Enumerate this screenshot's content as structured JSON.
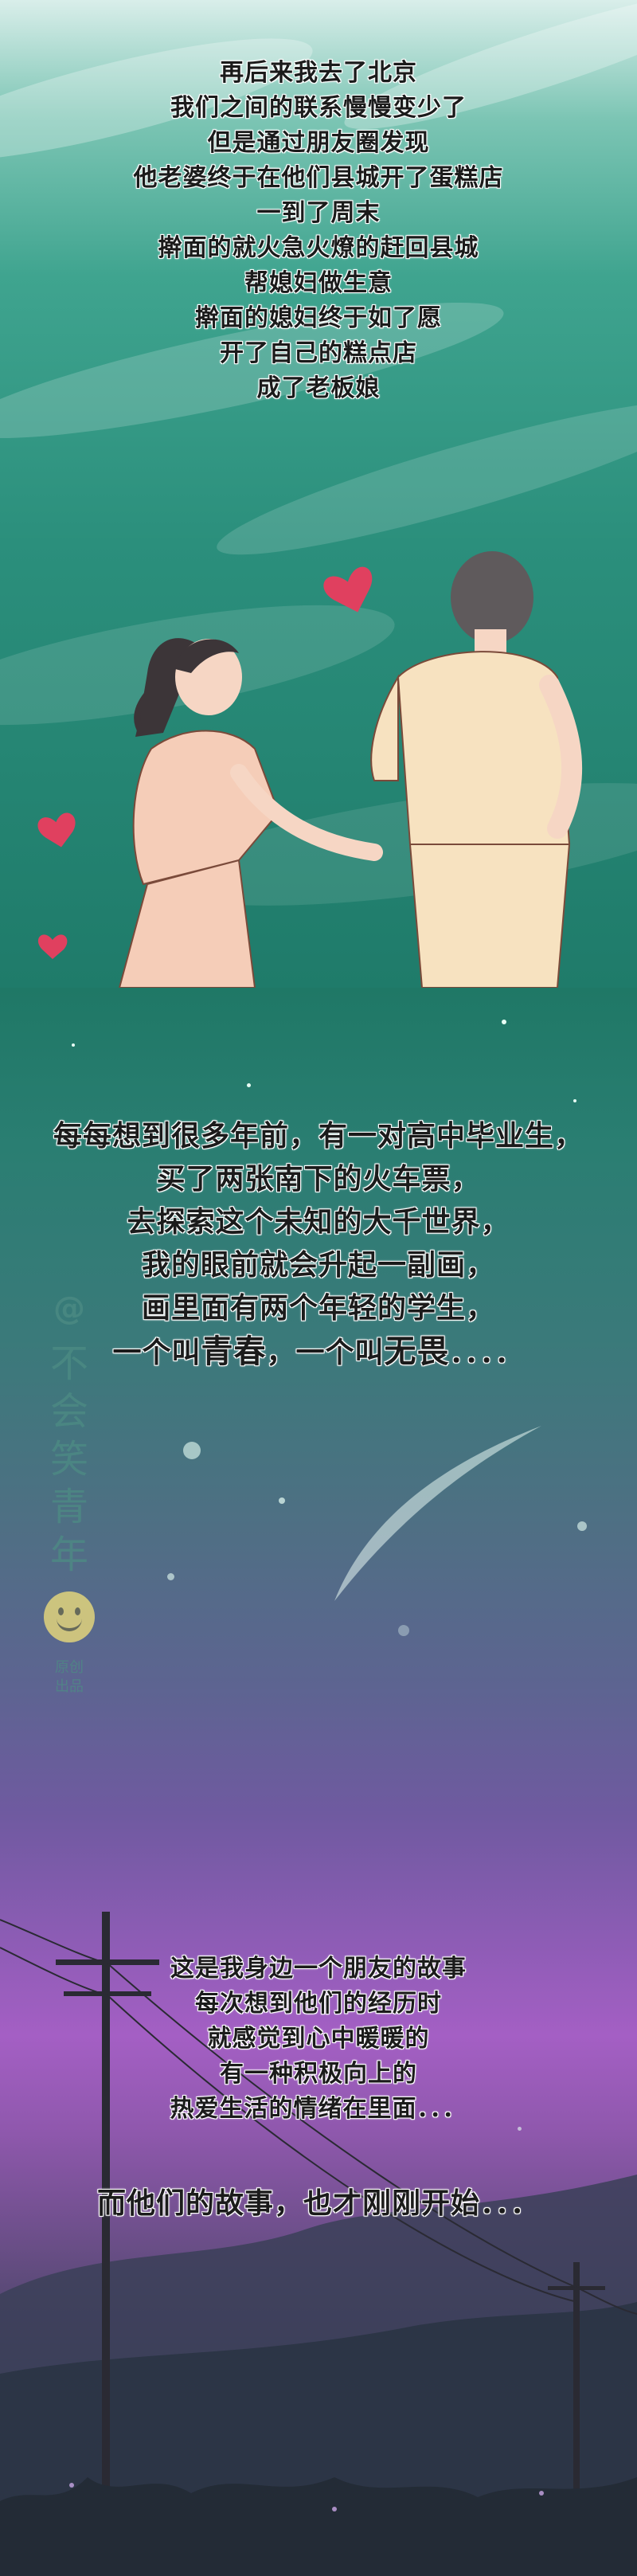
{
  "story_top": [
    "再后来我去了北京",
    "我们之间的联系慢慢变少了",
    "但是通过朋友圈发现",
    "他老婆终于在他们县城开了蛋糕店",
    "一到了周末",
    "擀面的就火急火燎的赶回县城",
    "帮媳妇做生意",
    "擀面的媳妇终于如了愿",
    "开了自己的糕点店",
    "成了老板娘"
  ],
  "story_middle": [
    "每每想到很多年前，有一对高中毕业生，",
    "买了两张南下的火车票，",
    "去探索这个未知的大千世界，",
    "我的眼前就会升起一副画，",
    "画里面有两个年轻的学生，"
  ],
  "closing_line": {
    "p1": "一个叫",
    "w1": "青春",
    "p2": "，一个叫",
    "w2": "无畏",
    "p3": "．．．．"
  },
  "story_bottom": [
    "这是我身边一个朋友的故事",
    "每次想到他们的经历时",
    "就感觉到心中暖暖的",
    "有一种积极向上的",
    "热爱生活的情绪在里面．．．"
  ],
  "final_line": "而他们的故事，也才刚刚开始．．．",
  "watermark": {
    "handle": "@",
    "name_chars": [
      "不",
      "会",
      "笑",
      "青",
      "年"
    ],
    "tag": [
      "原创",
      "出品"
    ]
  },
  "colors": {
    "teal": "#2b8f7c",
    "purple": "#a45fc4",
    "heart": "#e0405f",
    "text": "#1b1b1b"
  }
}
